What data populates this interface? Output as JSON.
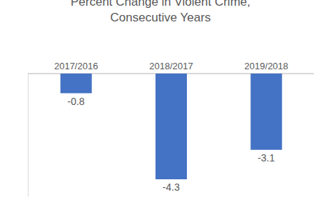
{
  "chart_data": {
    "type": "bar",
    "title": "Percent Change in Violent Crime, Consecutive Years",
    "categories": [
      "2017/2016",
      "2018/2017",
      "2019/2018"
    ],
    "values": [
      -0.8,
      -4.3,
      -3.1
    ],
    "color": "#4472c4",
    "ylim": [
      -5,
      0
    ],
    "grid": false,
    "data_labels": true,
    "tick_labels": "x"
  }
}
